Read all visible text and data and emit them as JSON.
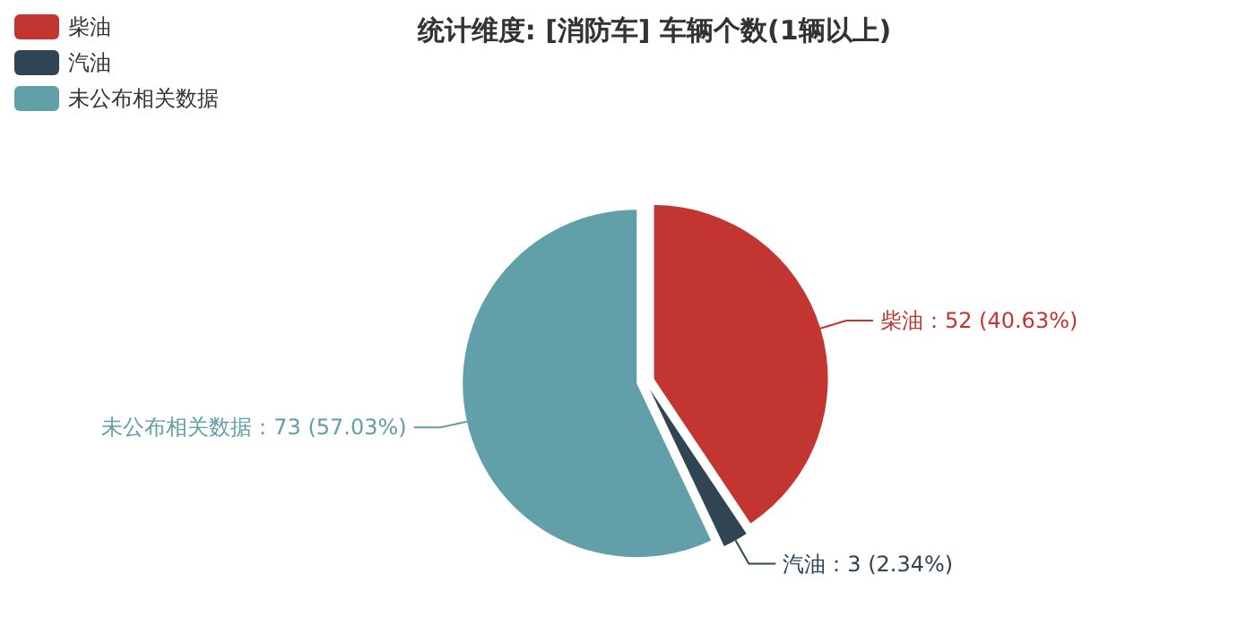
{
  "chart_data": {
    "type": "pie",
    "title": "统计维度: [消防车] 车辆个数(1辆以上)",
    "categories": [
      "柴油",
      "汽油",
      "未公布相关数据"
    ],
    "values": [
      52,
      3,
      73
    ],
    "colors": [
      "#c23531",
      "#2f4554",
      "#61a0a8"
    ],
    "value_labels": [
      "柴油：52 (40.63%)",
      "汽油：3 (2.34%)",
      "未公布相关数据：73 (57.03%)"
    ],
    "legend": "top left"
  }
}
